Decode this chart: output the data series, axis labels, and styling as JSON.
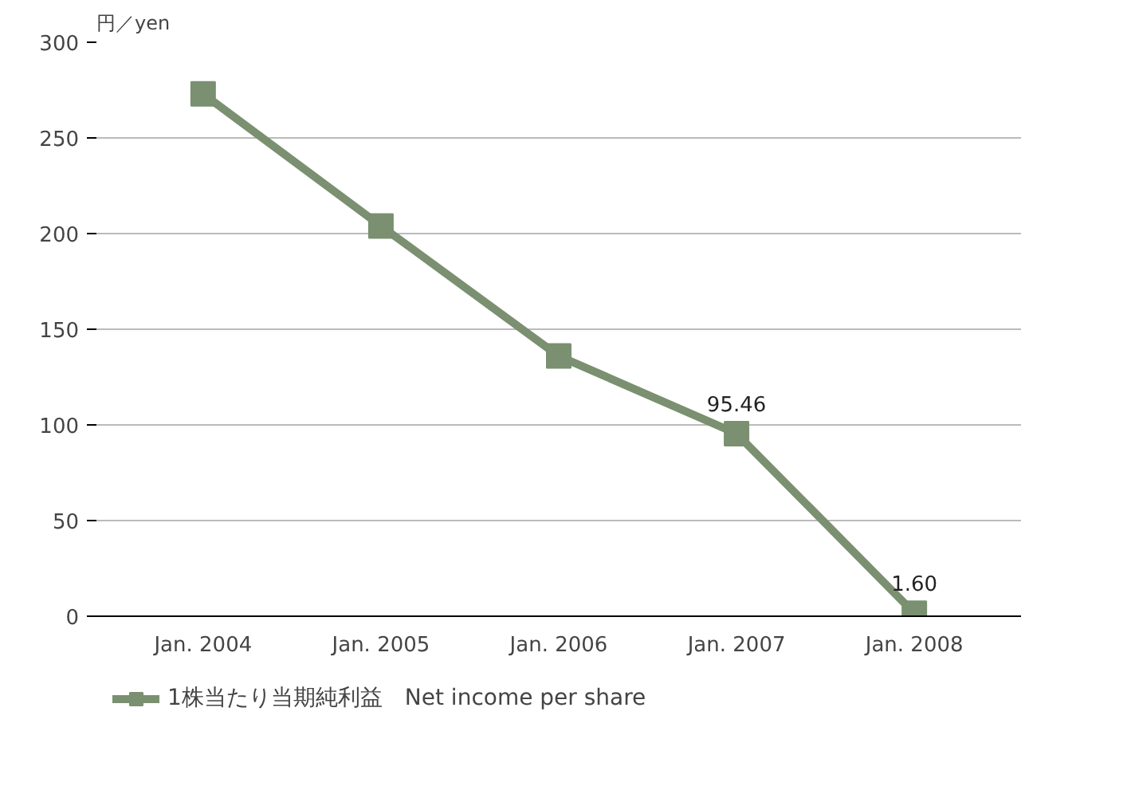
{
  "chart_data": {
    "type": "line",
    "ylabel": "円／yen",
    "categories": [
      "Jan. 2004",
      "Jan. 2005",
      "Jan. 2006",
      "Jan. 2007",
      "Jan. 2008"
    ],
    "series": [
      {
        "name": "1株当たり当期純利益　Net income per share",
        "color": "#7a9070",
        "values": [
          273,
          204,
          136,
          95.46,
          1.6
        ],
        "value_labels": [
          null,
          null,
          null,
          "95.46",
          "1.60"
        ]
      }
    ],
    "ylim": [
      0,
      300
    ],
    "yticks": [
      0,
      50,
      100,
      150,
      200,
      250,
      300
    ],
    "grid": "y",
    "legend": "bottom left",
    "marker": "square",
    "line_style": "solid"
  }
}
